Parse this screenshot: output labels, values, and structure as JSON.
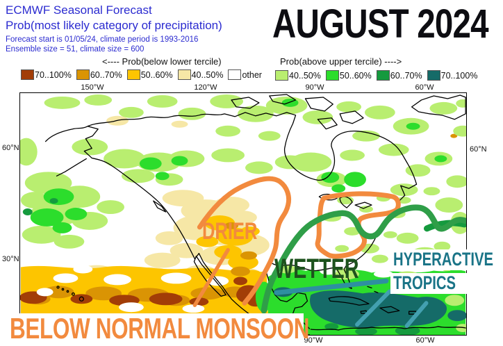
{
  "header": {
    "title": "ECMWF Seasonal Forecast",
    "subtitle": "Prob(most likely category of precipitation)",
    "meta_line1": "Forecast start is 01/05/24, climate period is 1993-2016",
    "meta_line2": "Ensemble size = 51, climate size = 600",
    "period_title": "AUGUST 2024"
  },
  "legend": {
    "below_caption": "<---- Prob(below lower tercile)",
    "above_caption": "Prob(above upper tercile) ---->",
    "below_items": [
      {
        "label": "70..100%",
        "color": "#a23d07"
      },
      {
        "label": "60..70%",
        "color": "#da9404"
      },
      {
        "label": "50..60%",
        "color": "#fdc500"
      },
      {
        "label": "40..50%",
        "color": "#f6e7a6"
      },
      {
        "label": "other",
        "color": "#ffffff"
      }
    ],
    "above_items": [
      {
        "label": "40..50%",
        "color": "#b9ee70"
      },
      {
        "label": "50..60%",
        "color": "#2cdd2c"
      },
      {
        "label": "60..70%",
        "color": "#159a3e"
      },
      {
        "label": "70..100%",
        "color": "#156b68"
      }
    ]
  },
  "map": {
    "top_lon_labels": [
      "150°W",
      "120°W",
      "90°W",
      "60°W"
    ],
    "bottom_lon_labels": [
      "90°W",
      "60°W"
    ],
    "left_lat_labels": [
      "60°N",
      "30°N"
    ],
    "right_lat_labels": [
      "60°N"
    ],
    "annotations": {
      "drier": "DRIER",
      "wetter": "WETTER",
      "hyperactive_line1": "HYPERACTIVE",
      "hyperactive_line2": "TROPICS",
      "monsoon": "BELOW NORMAL MONSOON"
    },
    "annotation_colors": {
      "orange": "#f28a3e",
      "green": "#2f9e48",
      "teal_line": "#2e8fa0",
      "teal_line_light": "#43a0b0",
      "wetter_text": "#1d521d",
      "hyperactive_text": "#1a7487",
      "dark_green_band": "#159a3e"
    }
  }
}
